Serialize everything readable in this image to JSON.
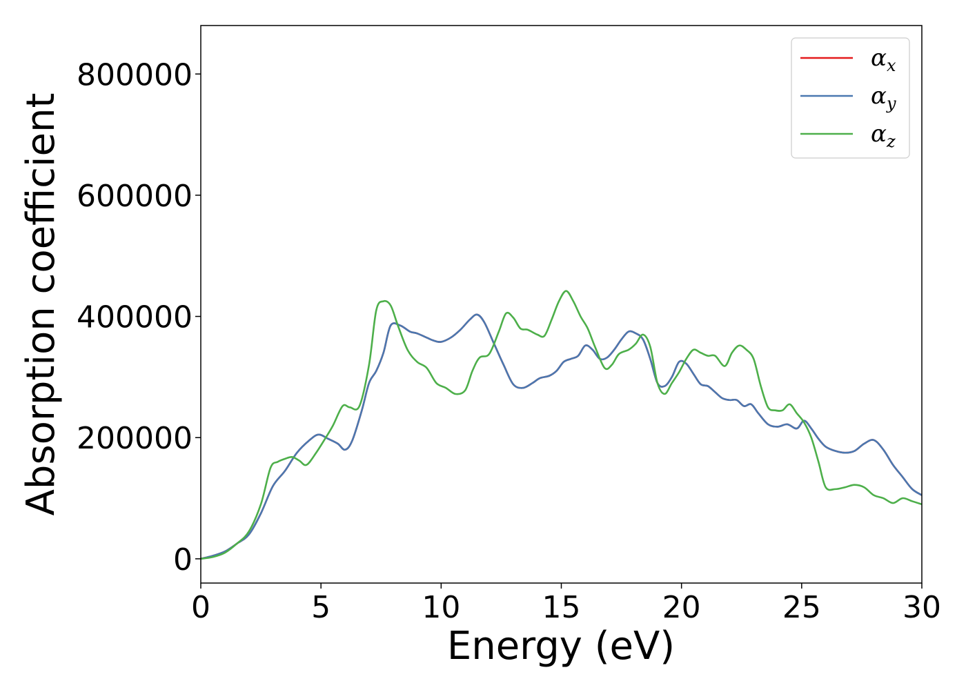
{
  "chart_data": {
    "type": "line",
    "xlabel": "Energy (eV)",
    "ylabel": "Absorption coefficient",
    "xlim": [
      0,
      30
    ],
    "ylim": [
      -40000,
      880000
    ],
    "xticks": [
      0,
      5,
      10,
      15,
      20,
      25,
      30
    ],
    "yticks": [
      0,
      200000,
      400000,
      600000,
      800000
    ],
    "grid": false,
    "legend_position": "top-right",
    "series": [
      {
        "name": "α",
        "subscript": "x",
        "color": "#e41a1c",
        "x": [
          0,
          0.5,
          1,
          1.5,
          2,
          2.5,
          3,
          3.5,
          4,
          4.5,
          4.9,
          5.3,
          5.7,
          6,
          6.3,
          6.7,
          7,
          7.3,
          7.6,
          7.9,
          8.3,
          8.7,
          9,
          9.4,
          9.7,
          10,
          10.4,
          10.8,
          11.2,
          11.5,
          11.8,
          12.2,
          12.6,
          13,
          13.4,
          13.8,
          14.1,
          14.5,
          14.8,
          15.1,
          15.4,
          15.7,
          16,
          16.3,
          16.6,
          16.9,
          17.2,
          17.5,
          17.8,
          18.1,
          18.4,
          18.7,
          19,
          19.3,
          19.6,
          19.9,
          20.2,
          20.5,
          20.8,
          21.1,
          21.4,
          21.7,
          22,
          22.3,
          22.6,
          22.9,
          23.2,
          23.6,
          24,
          24.4,
          24.8,
          25.1,
          25.4,
          25.7,
          26,
          26.4,
          26.8,
          27.2,
          27.6,
          28,
          28.4,
          28.8,
          29.2,
          29.6,
          30
        ],
        "y": [
          0,
          5000,
          12000,
          25000,
          40000,
          75000,
          120000,
          145000,
          175000,
          195000,
          205000,
          198000,
          190000,
          180000,
          195000,
          245000,
          290000,
          310000,
          340000,
          385000,
          385000,
          375000,
          372000,
          365000,
          360000,
          358000,
          365000,
          378000,
          395000,
          403000,
          390000,
          355000,
          320000,
          288000,
          282000,
          290000,
          298000,
          302000,
          310000,
          325000,
          330000,
          335000,
          352000,
          345000,
          330000,
          332000,
          345000,
          362000,
          375000,
          372000,
          362000,
          330000,
          290000,
          285000,
          300000,
          325000,
          322000,
          305000,
          288000,
          285000,
          275000,
          265000,
          262000,
          262000,
          252000,
          255000,
          240000,
          222000,
          218000,
          222000,
          215000,
          228000,
          215000,
          198000,
          185000,
          178000,
          175000,
          178000,
          190000,
          196000,
          180000,
          155000,
          135000,
          115000,
          105000
        ]
      },
      {
        "name": "α",
        "subscript": "y",
        "color": "#4a78b0",
        "x": [
          0,
          0.5,
          1,
          1.5,
          2,
          2.5,
          3,
          3.5,
          4,
          4.5,
          4.9,
          5.3,
          5.7,
          6,
          6.3,
          6.7,
          7,
          7.3,
          7.6,
          7.9,
          8.3,
          8.7,
          9,
          9.4,
          9.7,
          10,
          10.4,
          10.8,
          11.2,
          11.5,
          11.8,
          12.2,
          12.6,
          13,
          13.4,
          13.8,
          14.1,
          14.5,
          14.8,
          15.1,
          15.4,
          15.7,
          16,
          16.3,
          16.6,
          16.9,
          17.2,
          17.5,
          17.8,
          18.1,
          18.4,
          18.7,
          19,
          19.3,
          19.6,
          19.9,
          20.2,
          20.5,
          20.8,
          21.1,
          21.4,
          21.7,
          22,
          22.3,
          22.6,
          22.9,
          23.2,
          23.6,
          24,
          24.4,
          24.8,
          25.1,
          25.4,
          25.7,
          26,
          26.4,
          26.8,
          27.2,
          27.6,
          28,
          28.4,
          28.8,
          29.2,
          29.6,
          30
        ],
        "y": [
          0,
          5000,
          12000,
          25000,
          40000,
          75000,
          120000,
          145000,
          175000,
          195000,
          205000,
          198000,
          190000,
          180000,
          195000,
          245000,
          290000,
          310000,
          340000,
          385000,
          385000,
          375000,
          372000,
          365000,
          360000,
          358000,
          365000,
          378000,
          395000,
          403000,
          390000,
          355000,
          320000,
          288000,
          282000,
          290000,
          298000,
          302000,
          310000,
          325000,
          330000,
          335000,
          352000,
          345000,
          330000,
          332000,
          345000,
          362000,
          375000,
          372000,
          362000,
          330000,
          290000,
          285000,
          300000,
          325000,
          322000,
          305000,
          288000,
          285000,
          275000,
          265000,
          262000,
          262000,
          252000,
          255000,
          240000,
          222000,
          218000,
          222000,
          215000,
          228000,
          215000,
          198000,
          185000,
          178000,
          175000,
          178000,
          190000,
          196000,
          180000,
          155000,
          135000,
          115000,
          105000
        ]
      },
      {
        "name": "α",
        "subscript": "z",
        "color": "#4daf4a",
        "x": [
          0,
          0.5,
          1,
          1.5,
          2,
          2.5,
          2.9,
          3.2,
          3.5,
          3.8,
          4.1,
          4.4,
          4.8,
          5.2,
          5.5,
          5.9,
          6.2,
          6.6,
          7,
          7.3,
          7.6,
          7.9,
          8.2,
          8.6,
          9,
          9.4,
          9.8,
          10.2,
          10.6,
          11,
          11.3,
          11.6,
          12,
          12.4,
          12.7,
          13,
          13.3,
          13.6,
          14,
          14.3,
          14.6,
          14.9,
          15.2,
          15.5,
          15.8,
          16.1,
          16.4,
          16.8,
          17.1,
          17.4,
          17.8,
          18.1,
          18.4,
          18.7,
          19,
          19.3,
          19.6,
          19.9,
          20.2,
          20.5,
          20.8,
          21.1,
          21.4,
          21.8,
          22.1,
          22.4,
          22.7,
          23,
          23.3,
          23.6,
          23.9,
          24.2,
          24.5,
          24.8,
          25.1,
          25.4,
          25.7,
          26,
          26.4,
          26.8,
          27.2,
          27.6,
          28,
          28.4,
          28.8,
          29.2,
          29.6,
          30
        ],
        "y": [
          0,
          3000,
          10000,
          25000,
          45000,
          90000,
          150000,
          160000,
          165000,
          168000,
          162000,
          155000,
          175000,
          200000,
          220000,
          252000,
          250000,
          252000,
          320000,
          410000,
          425000,
          418000,
          385000,
          345000,
          325000,
          315000,
          290000,
          282000,
          272000,
          278000,
          310000,
          332000,
          338000,
          375000,
          405000,
          398000,
          380000,
          378000,
          370000,
          368000,
          395000,
          425000,
          442000,
          425000,
          400000,
          380000,
          350000,
          315000,
          320000,
          338000,
          345000,
          355000,
          370000,
          350000,
          290000,
          272000,
          290000,
          308000,
          330000,
          345000,
          340000,
          335000,
          335000,
          318000,
          340000,
          352000,
          345000,
          330000,
          285000,
          250000,
          245000,
          245000,
          255000,
          240000,
          225000,
          200000,
          160000,
          118000,
          115000,
          118000,
          122000,
          118000,
          105000,
          100000,
          92000,
          100000,
          95000,
          90000
        ]
      }
    ]
  }
}
